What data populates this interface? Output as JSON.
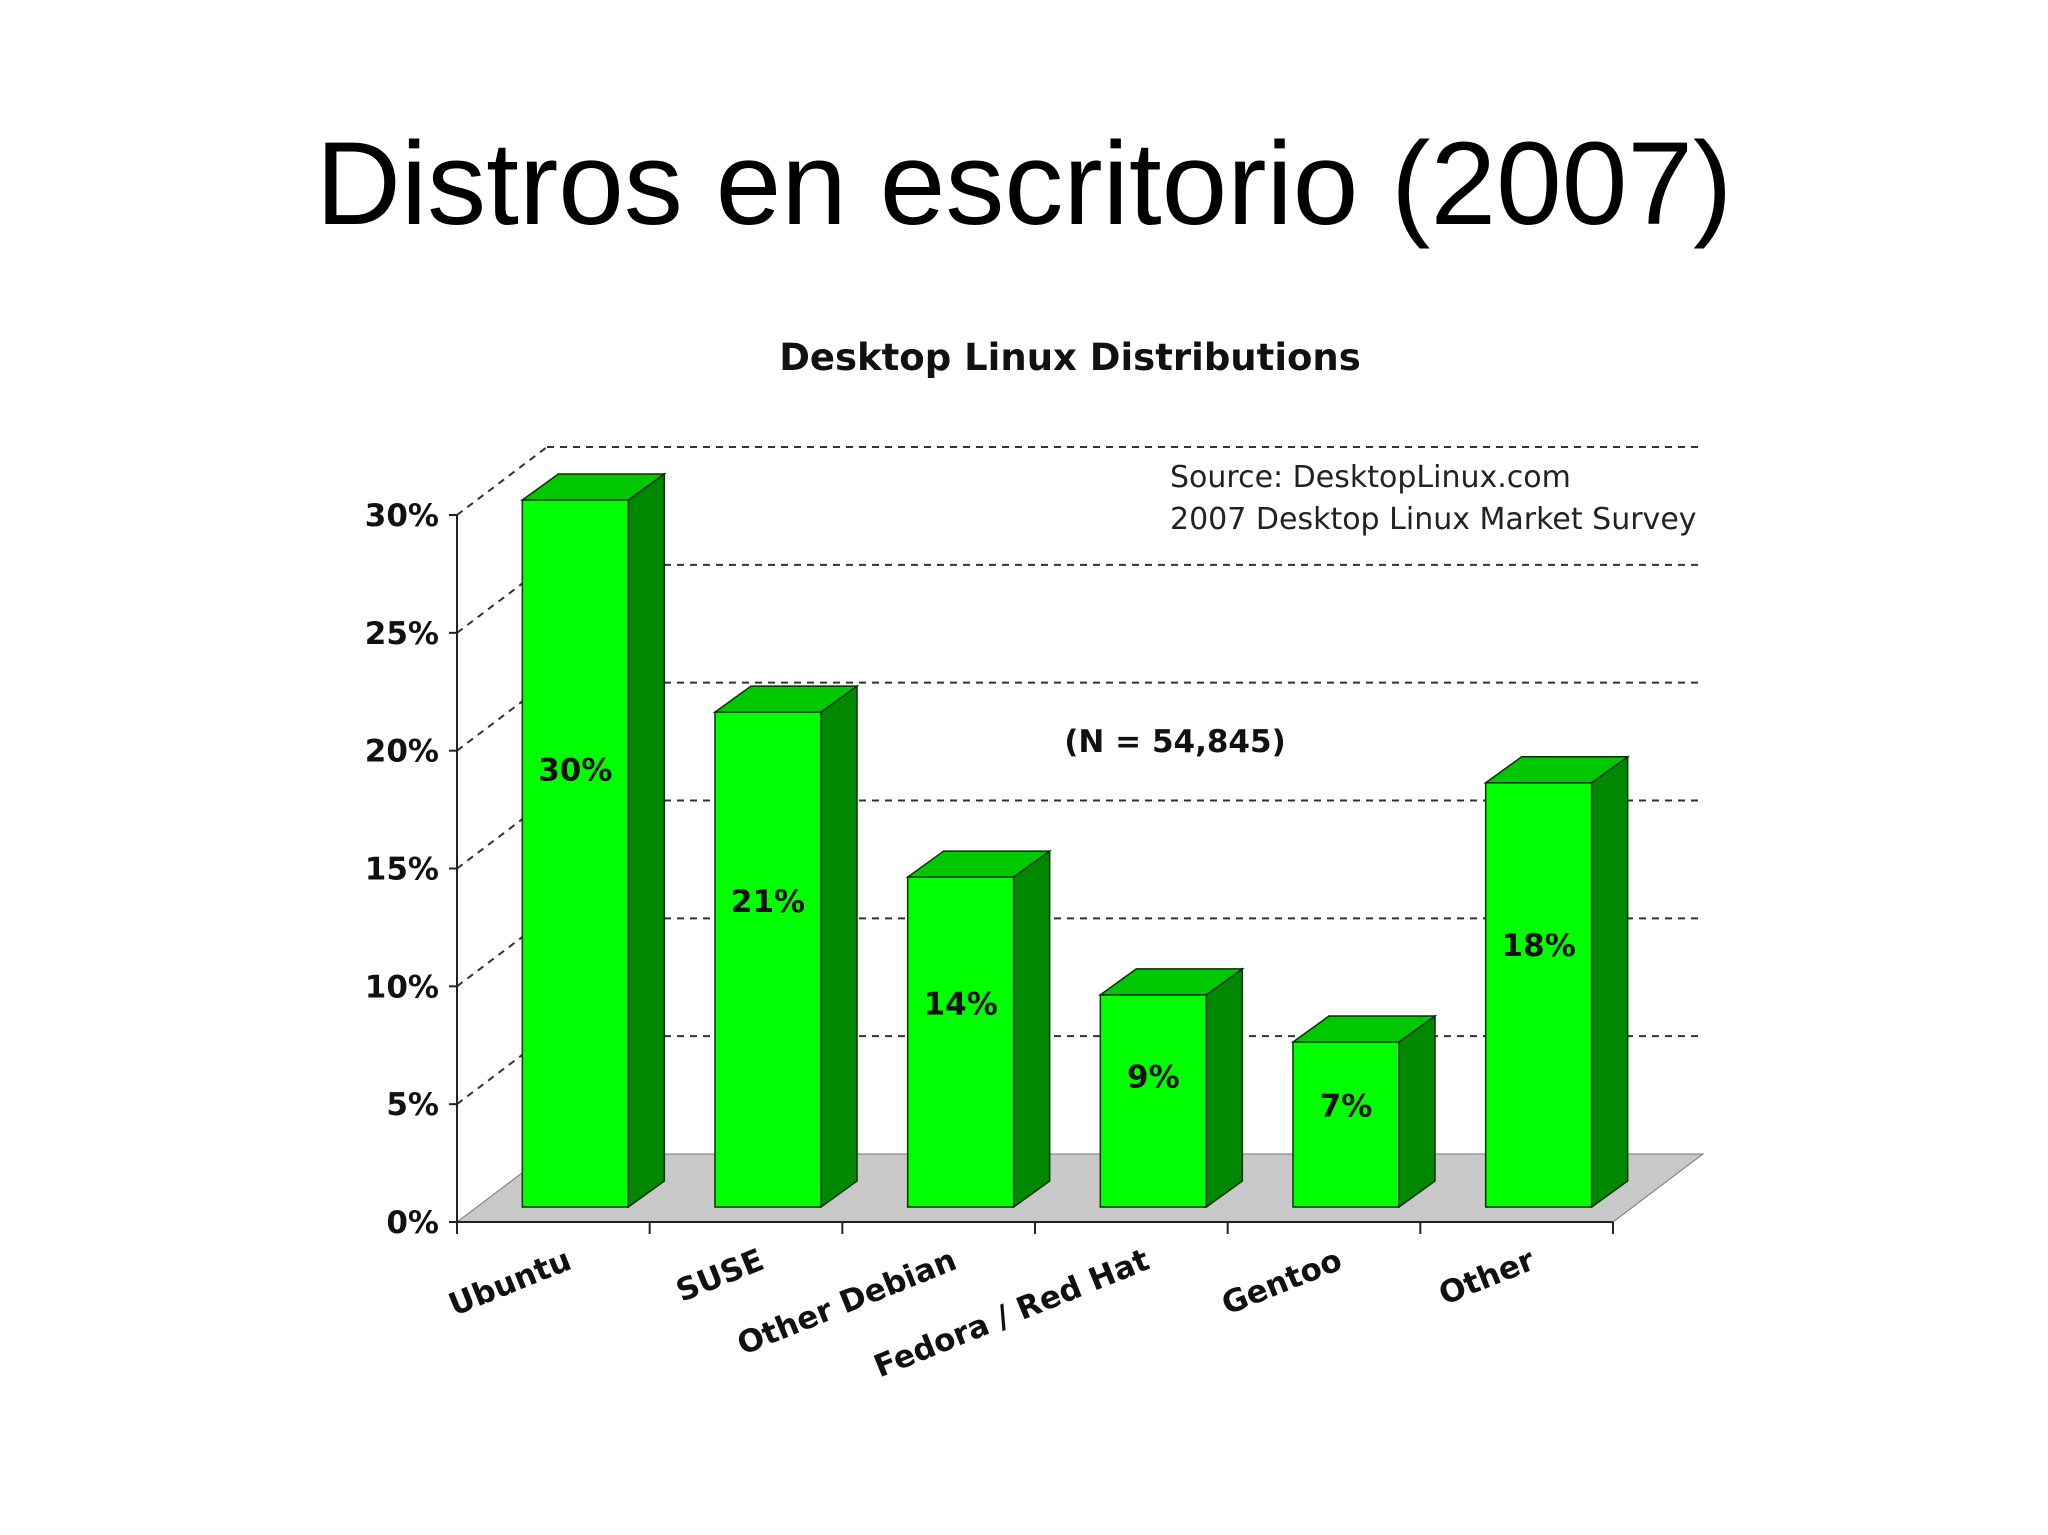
{
  "slide": {
    "title": "Distros en escritorio (2007)"
  },
  "colors": {
    "bar_front": "#00ff00",
    "bar_top": "#00c800",
    "bar_side": "#008800",
    "floor": "#c8c8c8",
    "gridline": "#333333"
  },
  "chart_data": {
    "type": "bar",
    "title": "Desktop Linux Distributions",
    "xlabel": "",
    "ylabel": "",
    "categories": [
      "Ubuntu",
      "SUSE",
      "Other Debian",
      "Fedora / Red Hat",
      "Gentoo",
      "Other"
    ],
    "values": [
      30,
      21,
      14,
      9,
      7,
      18
    ],
    "data_labels": [
      "30%",
      "21%",
      "14%",
      "9%",
      "7%",
      "18%"
    ],
    "ylim": [
      0,
      30
    ],
    "yticks": [
      0,
      5,
      10,
      15,
      20,
      25,
      30
    ],
    "ytick_labels": [
      "0%",
      "5%",
      "10%",
      "15%",
      "20%",
      "25%",
      "30%"
    ],
    "grid": true,
    "style": "3d",
    "annotations": {
      "source_line1": "Source: DesktopLinux.com",
      "source_line2": "2007 Desktop Linux Market Survey",
      "sample_size": "(N = 54,845)"
    }
  }
}
